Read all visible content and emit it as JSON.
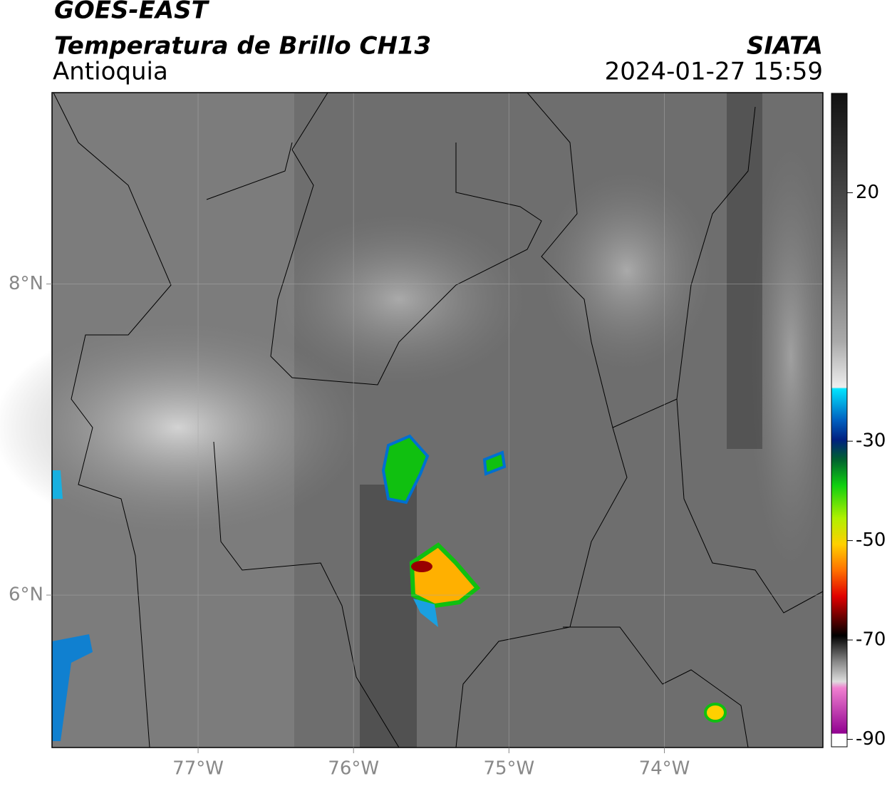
{
  "header": {
    "title": "GOES-EAST",
    "subtitle": "Temperatura de Brillo CH13",
    "region": "Antioquia",
    "source": "SIATA",
    "datetime": "2024-01-27 15:59"
  },
  "map": {
    "xlim": [
      -77.94,
      -72.98
    ],
    "ylim": [
      5.02,
      9.23
    ],
    "xticks": [
      {
        "value": -77,
        "label": "77°W"
      },
      {
        "value": -76,
        "label": "76°W"
      },
      {
        "value": -75,
        "label": "75°W"
      },
      {
        "value": -74,
        "label": "74°W"
      }
    ],
    "yticks": [
      {
        "value": 8,
        "label": "8°N"
      },
      {
        "value": 6,
        "label": "6°N"
      }
    ],
    "grid": true
  },
  "colorbar": {
    "clim": [
      -91.5,
      40
    ],
    "ticks": [
      20,
      -30,
      -50,
      -70,
      -90
    ]
  }
}
